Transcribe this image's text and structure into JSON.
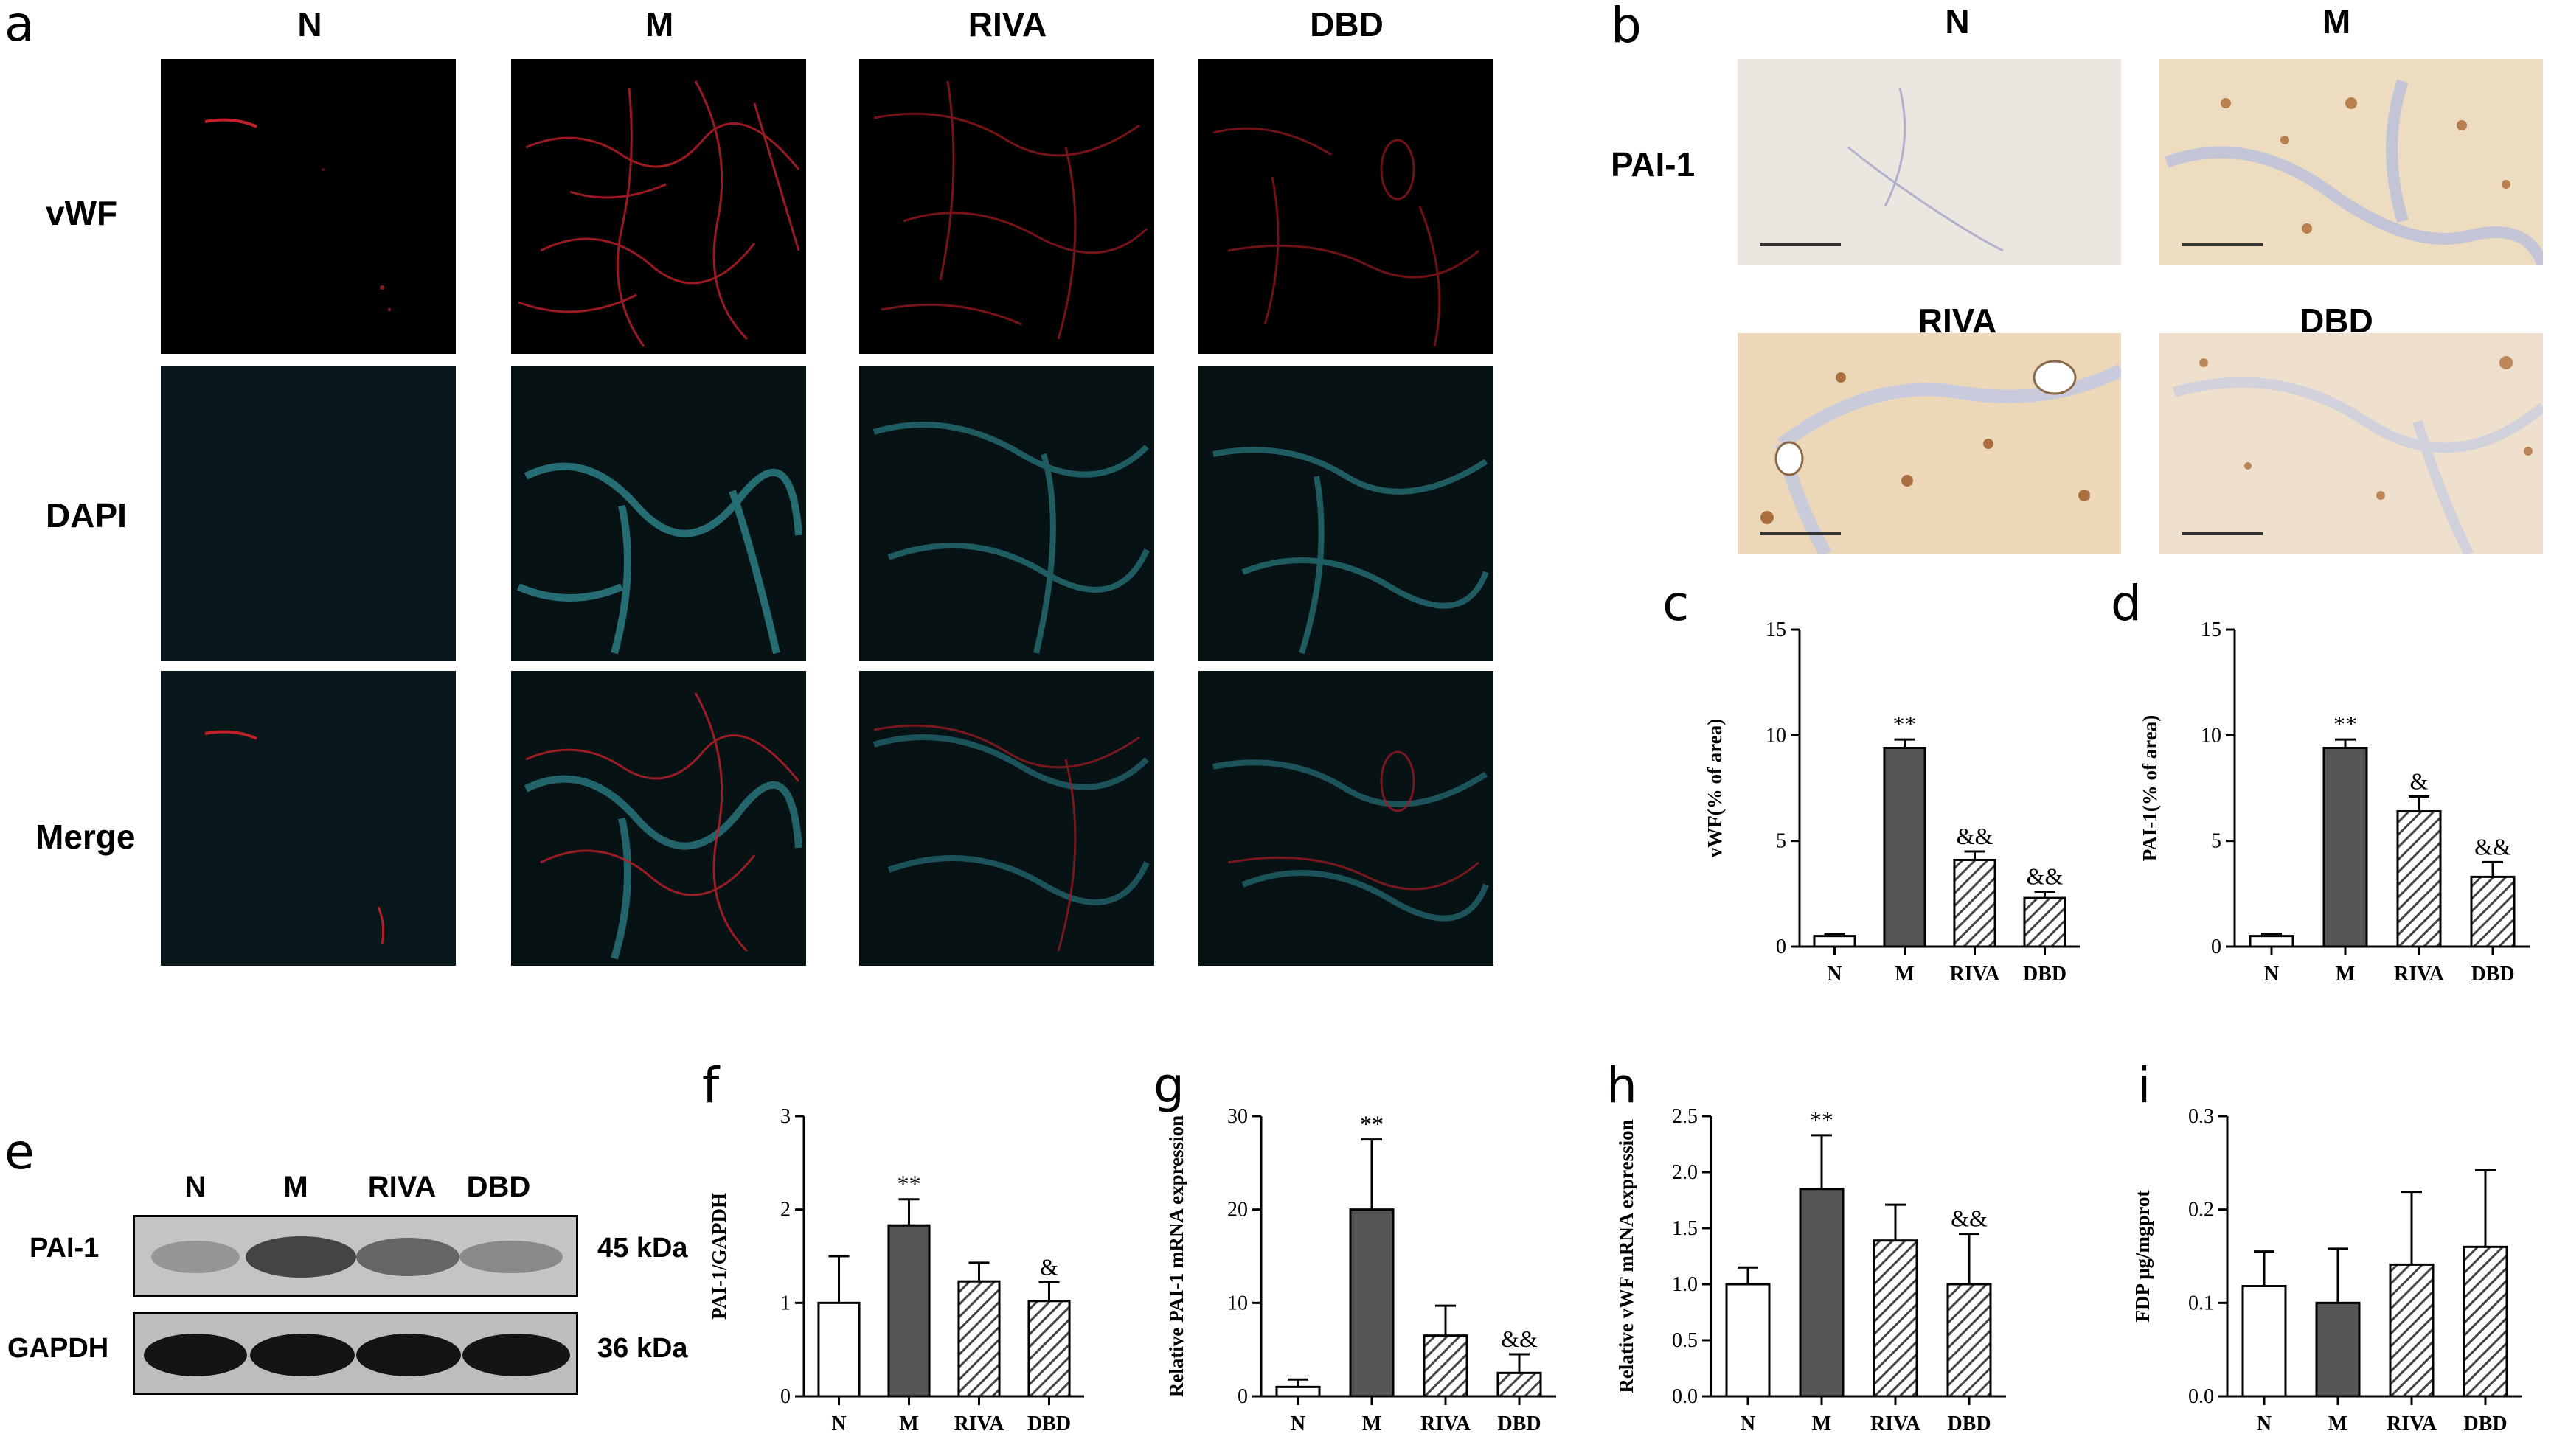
{
  "panel_a": {
    "letter": "a",
    "columns": [
      "N",
      "M",
      "RIVA",
      "DBD"
    ],
    "rows": [
      "vWF",
      "DAPI",
      "Merge"
    ]
  },
  "panel_b": {
    "letter": "b",
    "marker": "PAI-1",
    "groups": [
      "N",
      "M",
      "RIVA",
      "DBD"
    ]
  },
  "panel_e": {
    "letter": "e",
    "lanes": [
      "N",
      "M",
      "RIVA",
      "DBD"
    ],
    "blots": [
      {
        "name": "PAI-1",
        "size": "45 kDa"
      },
      {
        "name": "GAPDH",
        "size": "36 kDa"
      }
    ]
  },
  "chart_data": [
    {
      "id": "c",
      "letter": "c",
      "type": "bar",
      "categories": [
        "N",
        "M",
        "RIVA",
        "DBD"
      ],
      "values": [
        0.5,
        9.4,
        4.1,
        2.3
      ],
      "errors": [
        0.1,
        0.4,
        0.4,
        0.3
      ],
      "sig": [
        "",
        "**",
        "&&",
        "&&"
      ],
      "ylabel": "vWF(% of area)",
      "ylim": [
        0,
        15
      ],
      "yticks": [
        0,
        5,
        10,
        15
      ]
    },
    {
      "id": "d",
      "letter": "d",
      "type": "bar",
      "categories": [
        "N",
        "M",
        "RIVA",
        "DBD"
      ],
      "values": [
        0.5,
        9.4,
        6.4,
        3.3
      ],
      "errors": [
        0.1,
        0.4,
        0.7,
        0.7
      ],
      "sig": [
        "",
        "**",
        "&",
        "&&"
      ],
      "ylabel": "PAI-1(% of area)",
      "ylim": [
        0,
        15
      ],
      "yticks": [
        0,
        5,
        10,
        15
      ]
    },
    {
      "id": "f",
      "letter": "f",
      "type": "bar",
      "categories": [
        "N",
        "M",
        "RIVA",
        "DBD"
      ],
      "values": [
        1.0,
        1.83,
        1.23,
        1.02
      ],
      "errors": [
        0.5,
        0.28,
        0.2,
        0.2
      ],
      "sig": [
        "",
        "**",
        "",
        "&"
      ],
      "ylabel": "PAI-1/GAPDH",
      "ylim": [
        0,
        3
      ],
      "yticks": [
        0,
        1,
        2,
        3
      ]
    },
    {
      "id": "g",
      "letter": "g",
      "type": "bar",
      "categories": [
        "N",
        "M",
        "RIVA",
        "DBD"
      ],
      "values": [
        1.0,
        20.0,
        6.5,
        2.5
      ],
      "errors": [
        0.8,
        7.5,
        3.2,
        2.0
      ],
      "sig": [
        "",
        "**",
        "",
        "&&"
      ],
      "ylabel": "Relative PAI-1 mRNA expression",
      "ylim": [
        0,
        30
      ],
      "yticks": [
        0,
        10,
        20,
        30
      ]
    },
    {
      "id": "h",
      "letter": "h",
      "type": "bar",
      "categories": [
        "N",
        "M",
        "RIVA",
        "DBD"
      ],
      "values": [
        1.0,
        1.85,
        1.39,
        1.0
      ],
      "errors": [
        0.15,
        0.48,
        0.32,
        0.45
      ],
      "sig": [
        "",
        "**",
        "",
        "&&"
      ],
      "ylabel": "Relative vWF mRNA expression",
      "ylim": [
        0,
        2.5
      ],
      "yticks": [
        "0.0",
        "0.5",
        "1.0",
        "1.5",
        "2.0",
        "2.5"
      ]
    },
    {
      "id": "i",
      "letter": "i",
      "type": "bar",
      "categories": [
        "N",
        "M",
        "RIVA",
        "DBD"
      ],
      "values": [
        0.118,
        0.1,
        0.141,
        0.16
      ],
      "errors": [
        0.037,
        0.058,
        0.078,
        0.082
      ],
      "sig": [
        "",
        "",
        "",
        ""
      ],
      "ylabel": "FDP μg/mgprot",
      "ylim": [
        0,
        0.3
      ],
      "yticks": [
        "0.0",
        "0.1",
        "0.2",
        "0.3"
      ]
    }
  ]
}
